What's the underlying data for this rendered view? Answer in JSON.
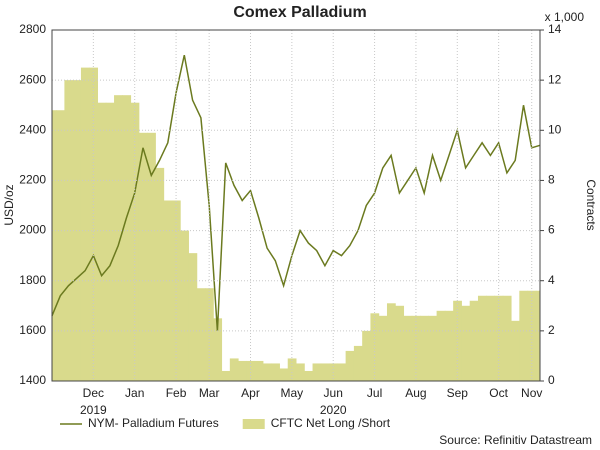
{
  "chart_data": {
    "type": "line-area",
    "title": "Comex Palladium",
    "y_label": "USD/oz",
    "y2_label": "Contracts",
    "y2_unit": "x 1,000",
    "source": "Source: Refinitiv Datastream",
    "categories": [
      null,
      null,
      null,
      null,
      null,
      "Dec",
      null,
      null,
      null,
      null,
      "Jan",
      null,
      null,
      null,
      null,
      "Feb",
      null,
      null,
      null,
      "Mar",
      null,
      null,
      null,
      null,
      "Apr",
      null,
      null,
      null,
      null,
      "May",
      null,
      null,
      null,
      null,
      "Jun",
      null,
      null,
      null,
      null,
      "Jul",
      null,
      null,
      null,
      null,
      "Aug",
      null,
      null,
      null,
      null,
      "Sep",
      null,
      null,
      null,
      null,
      "Oct",
      null,
      null,
      null,
      "Nov",
      null
    ],
    "years": [
      null,
      null,
      null,
      null,
      null,
      "2019",
      null,
      null,
      null,
      null,
      null,
      null,
      null,
      null,
      null,
      null,
      null,
      null,
      null,
      null,
      null,
      null,
      null,
      null,
      null,
      null,
      null,
      null,
      null,
      null,
      null,
      null,
      null,
      null,
      "2020",
      null,
      null,
      null,
      null,
      null,
      null,
      null,
      null,
      null,
      null,
      null,
      null,
      null,
      null,
      null,
      null,
      null,
      null,
      null,
      null,
      null,
      null,
      null,
      null,
      null
    ],
    "series": [
      {
        "name": "NYM- Palladium Futures",
        "color": "#6b7a1f",
        "kind": "line",
        "values": [
          1660,
          1740,
          1780,
          1810,
          1840,
          1900,
          1820,
          1860,
          1940,
          2050,
          2150,
          2330,
          2220,
          2280,
          2350,
          2550,
          2700,
          2520,
          2450,
          2100,
          1600,
          2270,
          2180,
          2120,
          2160,
          2050,
          1930,
          1880,
          1780,
          1900,
          2000,
          1950,
          1920,
          1860,
          1920,
          1900,
          1940,
          2000,
          2100,
          2150,
          2250,
          2300,
          2150,
          2200,
          2250,
          2150,
          2300,
          2200,
          2300,
          2400,
          2250,
          2300,
          2350,
          2300,
          2350,
          2230,
          2280,
          2500,
          2330,
          2340
        ]
      },
      {
        "name": "CFTC Net Long /Short",
        "color": "#d9da8c",
        "kind": "area",
        "axis": "y2",
        "values": [
          10.8,
          10.8,
          12.0,
          12.0,
          12.5,
          12.5,
          11.1,
          11.1,
          11.4,
          11.4,
          11.1,
          9.9,
          9.9,
          8.5,
          7.2,
          7.2,
          6.0,
          5.1,
          3.7,
          3.7,
          2.5,
          0.4,
          0.9,
          0.8,
          0.8,
          0.8,
          0.7,
          0.7,
          0.5,
          0.9,
          0.7,
          0.4,
          0.7,
          0.7,
          0.7,
          0.7,
          1.2,
          1.4,
          2.0,
          2.7,
          2.6,
          3.1,
          3.0,
          2.6,
          2.6,
          2.6,
          2.6,
          2.8,
          2.8,
          3.2,
          3.0,
          3.2,
          3.4,
          3.4,
          3.4,
          3.4,
          2.4,
          3.6,
          3.6,
          3.6
        ]
      }
    ],
    "ylim": [
      1400,
      2800
    ],
    "yticks": [
      1400,
      1600,
      1800,
      2000,
      2200,
      2400,
      2600,
      2800
    ],
    "y2lim": [
      0,
      14
    ],
    "y2ticks": [
      0,
      2,
      4,
      6,
      8,
      10,
      12,
      14
    ],
    "grid": true,
    "legend": "bottom"
  }
}
